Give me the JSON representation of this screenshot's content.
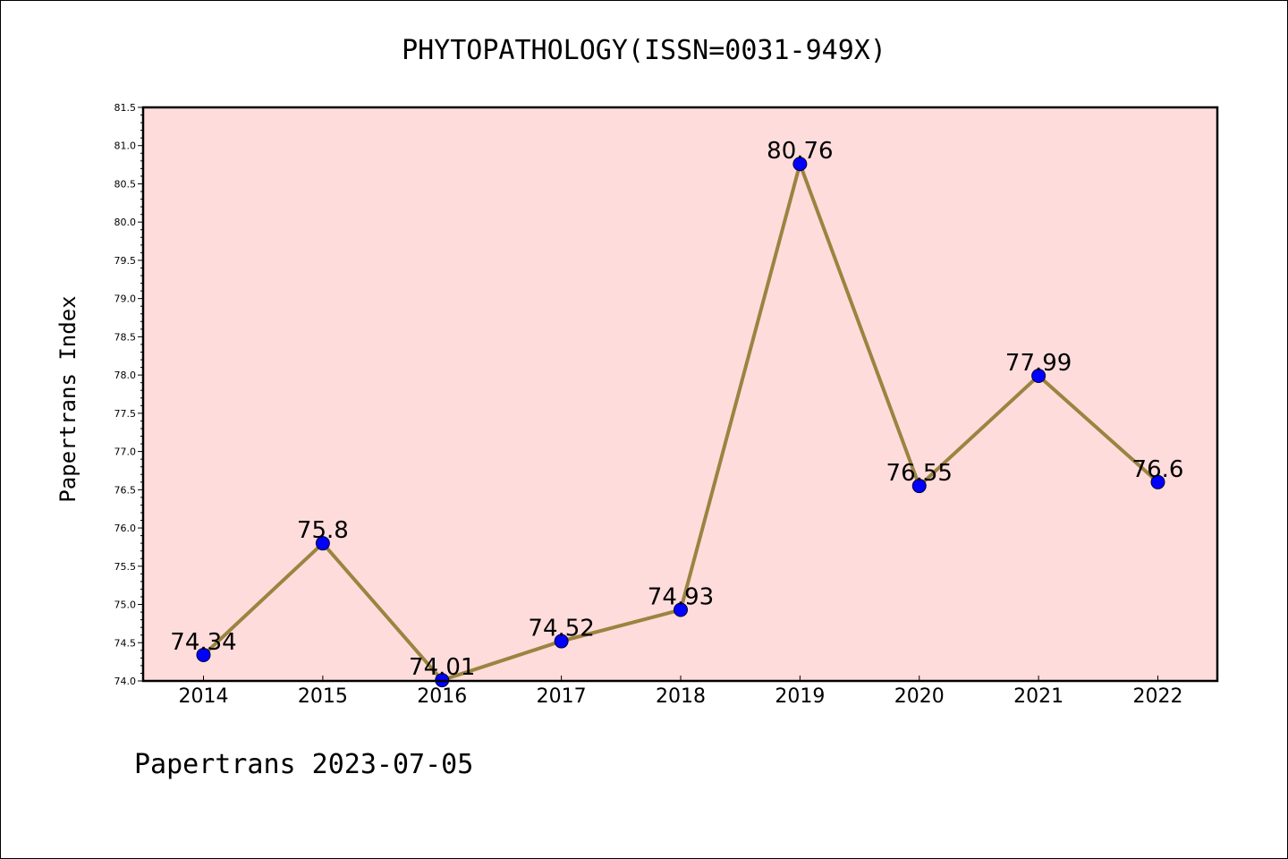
{
  "chart_data": {
    "type": "line",
    "title": "PHYTOPATHOLOGY(ISSN=0031-949X)",
    "ylabel": "Papertrans Index",
    "xlabel": "",
    "footer": "Papertrans 2023-07-05",
    "x": [
      "2014",
      "2015",
      "2016",
      "2017",
      "2018",
      "2019",
      "2020",
      "2021",
      "2022"
    ],
    "values": [
      74.34,
      75.8,
      74.01,
      74.52,
      74.93,
      80.76,
      76.55,
      77.99,
      76.6
    ],
    "data_labels": [
      "74.34",
      "75.8",
      "74.01",
      "74.52",
      "74.93",
      "80.76",
      "76.55",
      "77.99",
      "76.6"
    ],
    "ylim": [
      74.0,
      81.5
    ],
    "yticks": [
      "74.0",
      "74.5",
      "75.0",
      "75.5",
      "76.0",
      "76.5",
      "77.0",
      "77.5",
      "78.0",
      "78.5",
      "79.0",
      "79.5",
      "80.0",
      "80.5",
      "81.0",
      "81.5"
    ],
    "grid": false,
    "legend": "none",
    "colors": {
      "plot_background": "#ffdcdc",
      "line": "#9a8440",
      "marker_fill": "#0000ff",
      "marker_edge": "#000033"
    }
  }
}
